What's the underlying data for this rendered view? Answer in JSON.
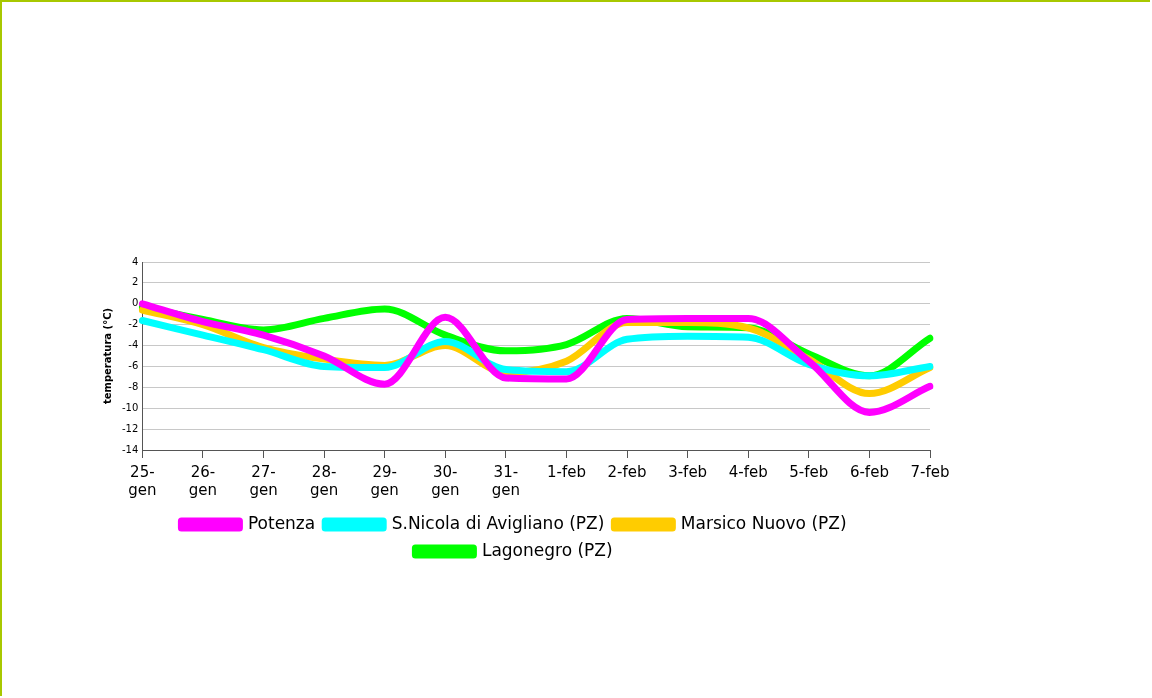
{
  "chart_data": {
    "type": "line",
    "ylabel": "temperatura (°C)",
    "categories": [
      "25-gen",
      "26-gen",
      "27-gen",
      "28-gen",
      "29-gen",
      "30-gen",
      "31-gen",
      "1-feb",
      "2-feb",
      "3-feb",
      "4-feb",
      "5-feb",
      "6-feb",
      "7-feb"
    ],
    "series": [
      {
        "name": "Potenza",
        "color": "#ff00ff",
        "values": [
          0.0,
          -1.7,
          -3.0,
          -5.0,
          -7.7,
          -1.3,
          -7.1,
          -7.2,
          -1.5,
          -1.4,
          -1.4,
          -5.5,
          -10.4,
          -7.9
        ]
      },
      {
        "name": "S.Nicola di Avigliano (PZ)",
        "color": "#00ffff",
        "values": [
          -1.6,
          -3.0,
          -4.4,
          -6.0,
          -6.1,
          -3.6,
          -6.3,
          -6.5,
          -3.4,
          -3.1,
          -3.2,
          -5.8,
          -6.9,
          -6.0
        ]
      },
      {
        "name": "Marsico Nuovo (PZ)",
        "color": "#ffcc00",
        "values": [
          -0.6,
          -2.0,
          -4.2,
          -5.3,
          -5.9,
          -4.0,
          -6.6,
          -5.5,
          -1.8,
          -1.8,
          -2.3,
          -5.3,
          -8.6,
          -6.1
        ]
      },
      {
        "name": "Lagonegro (PZ)",
        "color": "#00ff00",
        "values": [
          -0.3,
          -1.5,
          -2.5,
          -1.4,
          -0.5,
          -3.0,
          -4.5,
          -3.9,
          -1.4,
          -2.2,
          -2.3,
          -4.8,
          -6.9,
          -3.3
        ]
      }
    ],
    "ylim": [
      -14,
      4
    ],
    "yticks": [
      -14,
      -12,
      -10,
      -8,
      -6,
      -4,
      -2,
      0,
      2,
      4
    ],
    "grid": "y",
    "legend": "bottom",
    "marker": "none",
    "line_style": "solid"
  }
}
